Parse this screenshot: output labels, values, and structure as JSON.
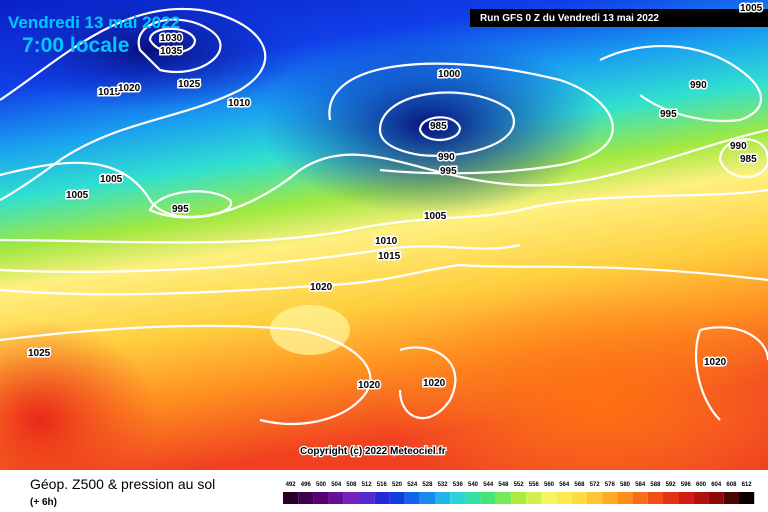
{
  "header": {
    "date": "Vendredi 13 mai 2022",
    "time": "7:00 locale",
    "run": "Run GFS 0 Z du Vendredi 13 mai 2022"
  },
  "isobar_labels": [
    "1030",
    "1035",
    "1025",
    "1010",
    "1015",
    "1020",
    "1005",
    "1005",
    "995",
    "1000",
    "985",
    "990",
    "995",
    "1005",
    "1010",
    "1015",
    "1020",
    "1025",
    "1020",
    "1020",
    "1020",
    "990",
    "995",
    "990",
    "985",
    "1005"
  ],
  "copyright": "Copyright (c) 2022 Meteociel.fr",
  "footer": {
    "title": "Géop. Z500 & pression au sol",
    "step": "(+ 6h)"
  },
  "legend": {
    "labels": [
      492,
      496,
      500,
      504,
      508,
      512,
      516,
      520,
      524,
      528,
      532,
      536,
      540,
      544,
      548,
      552,
      556,
      560,
      564,
      568,
      572,
      576,
      580,
      584,
      588,
      592,
      596,
      600,
      604,
      608,
      612
    ]
  }
}
